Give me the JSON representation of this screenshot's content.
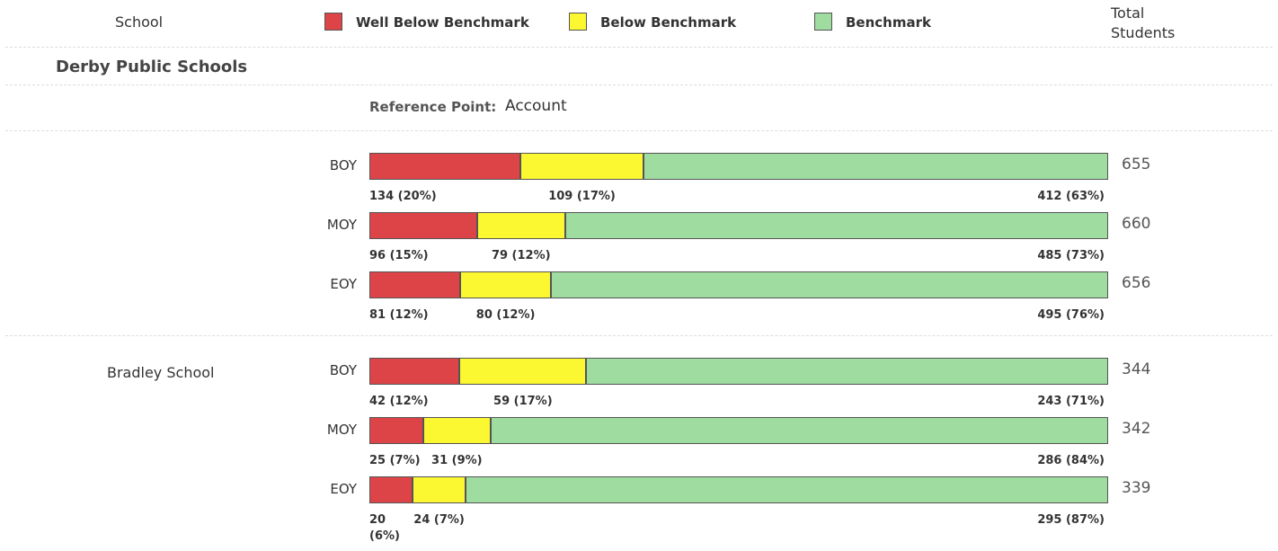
{
  "header": {
    "school": "School",
    "legend": [
      {
        "name": "Well Below Benchmark",
        "color": "#dd4448"
      },
      {
        "name": "Below Benchmark",
        "color": "#fbf730"
      },
      {
        "name": "Benchmark",
        "color": "#9fdc9f"
      }
    ],
    "total": "Total Students"
  },
  "groups": [
    {
      "name": "Derby Public Schools",
      "reference_label": "Reference Point:",
      "reference_value": "Account",
      "rows": [
        {
          "period": "BOY",
          "total": 655,
          "segments": [
            {
              "value": 134,
              "label": "134 (20%)"
            },
            {
              "value": 109,
              "label": "109 (17%)"
            },
            {
              "value": 412,
              "label": "412 (63%)"
            }
          ]
        },
        {
          "period": "MOY",
          "total": 660,
          "segments": [
            {
              "value": 96,
              "label": "96 (15%)"
            },
            {
              "value": 79,
              "label": "79 (12%)"
            },
            {
              "value": 485,
              "label": "485 (73%)"
            }
          ]
        },
        {
          "period": "EOY",
          "total": 656,
          "segments": [
            {
              "value": 81,
              "label": "81 (12%)"
            },
            {
              "value": 80,
              "label": "80 (12%)"
            },
            {
              "value": 495,
              "label": "495 (76%)"
            }
          ]
        }
      ]
    },
    {
      "name": "Bradley School",
      "rows": [
        {
          "period": "BOY",
          "total": 344,
          "segments": [
            {
              "value": 42,
              "label": "42 (12%)"
            },
            {
              "value": 59,
              "label": "59 (17%)"
            },
            {
              "value": 243,
              "label": "243 (71%)"
            }
          ]
        },
        {
          "period": "MOY",
          "total": 342,
          "segments": [
            {
              "value": 25,
              "label": "25 (7%)"
            },
            {
              "value": 31,
              "label": "31 (9%)"
            },
            {
              "value": 286,
              "label": "286 (84%)"
            }
          ]
        },
        {
          "period": "EOY",
          "total": 339,
          "segments": [
            {
              "value": 20,
              "label": "20 (6%)"
            },
            {
              "value": 24,
              "label": "24 (7%)"
            },
            {
              "value": 295,
              "label": "295 (87%)"
            }
          ]
        }
      ]
    }
  ]
}
